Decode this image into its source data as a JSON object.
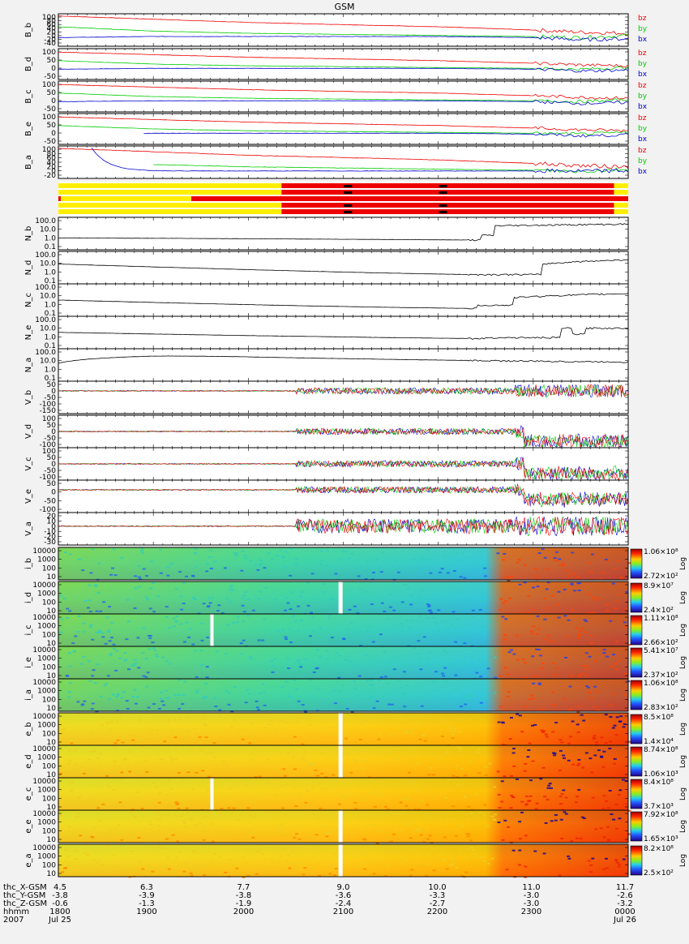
{
  "title": "GSM",
  "colors": {
    "bx": "#0000cc",
    "by": "#00cc00",
    "bz": "#ee0000",
    "black": "#000000",
    "yellow": "#ffee00",
    "red": "#ee0000"
  },
  "panels_b": [
    {
      "label": "B_b",
      "ticks": [
        "100",
        "80",
        "60",
        "40",
        "20",
        "0",
        "-20",
        "-40"
      ],
      "yrange": [
        -40,
        110
      ]
    },
    {
      "label": "B_d",
      "ticks": [
        "100",
        "50",
        "0",
        "-50"
      ],
      "yrange": [
        -60,
        120
      ]
    },
    {
      "label": "B_c",
      "ticks": [
        "100",
        "50",
        "0",
        "-50"
      ],
      "yrange": [
        -60,
        120
      ]
    },
    {
      "label": "B_e",
      "ticks": [
        "100",
        "50",
        "0",
        "-50"
      ],
      "yrange": [
        -60,
        120
      ]
    },
    {
      "label": "B_a",
      "ticks": [
        "100",
        "80",
        "60",
        "40",
        "20",
        "0",
        "-20"
      ],
      "yrange": [
        -30,
        110
      ]
    }
  ],
  "b_legend": [
    "bz",
    "by",
    "bx"
  ],
  "panels_n": [
    {
      "label": "N_b",
      "ticks": [
        "100.0",
        "10.0",
        "1.0",
        "0.1"
      ]
    },
    {
      "label": "N_d",
      "ticks": [
        "100.0",
        "10.0",
        "1.0",
        "0.1"
      ]
    },
    {
      "label": "N_c",
      "ticks": [
        "100.0",
        "10.0",
        "1.0",
        "0.1"
      ]
    },
    {
      "label": "N_e",
      "ticks": [
        "100.0",
        "10.0",
        "1.0",
        "0.1"
      ]
    },
    {
      "label": "N_a",
      "ticks": [
        "100.0",
        "10.0",
        "1.0",
        "0.1"
      ]
    }
  ],
  "panels_v": [
    {
      "label": "V_b",
      "ticks": [
        "50",
        "0",
        "-50",
        "-100",
        "-150"
      ]
    },
    {
      "label": "V_d",
      "ticks": [
        "100",
        "50",
        "0",
        "-50",
        "-100"
      ]
    },
    {
      "label": "V_c",
      "ticks": [
        "100",
        "50",
        "0",
        "-50",
        "-100"
      ]
    },
    {
      "label": "V_e",
      "ticks": [
        "50",
        "0",
        "-50",
        "-100"
      ]
    },
    {
      "label": "V_a",
      "ticks": [
        "20",
        "10",
        "0",
        "-10",
        "-20",
        "-30"
      ]
    }
  ],
  "panels_spec": [
    {
      "label": "i_b",
      "ticks": [
        "10000",
        "1000",
        "100",
        "10"
      ],
      "cmax": "1.06×10⁸",
      "cmin": "2.72×10²"
    },
    {
      "label": "i_d",
      "ticks": [
        "10000",
        "1000",
        "100",
        "10"
      ],
      "cmax": "8.9×10⁷",
      "cmin": "2.4×10²"
    },
    {
      "label": "i_c",
      "ticks": [
        "10000",
        "1000",
        "100",
        "10"
      ],
      "cmax": "1.11×10⁸",
      "cmin": "2.66×10²"
    },
    {
      "label": "i_e",
      "ticks": [
        "10000",
        "1000",
        "100",
        "10"
      ],
      "cmax": "5.41×10⁷",
      "cmin": "2.37×10²"
    },
    {
      "label": "i_a",
      "ticks": [
        "10000",
        "1000",
        "100",
        "10"
      ],
      "cmax": "1.06×10⁸",
      "cmin": "2.83×10²"
    },
    {
      "label": "e_b",
      "ticks": [
        "10000",
        "1000",
        "100",
        "10"
      ],
      "cmax": "8.5×10⁸",
      "cmin": "1.4×10⁴"
    },
    {
      "label": "e_d",
      "ticks": [
        "10000",
        "1000",
        "100",
        "10"
      ],
      "cmax": "8.74×10⁸",
      "cmin": "1.06×10³"
    },
    {
      "label": "e_c",
      "ticks": [
        "10000",
        "1000",
        "100",
        "10"
      ],
      "cmax": "8.4×10⁸",
      "cmin": "3.7×10³"
    },
    {
      "label": "e_e",
      "ticks": [
        "10000",
        "1000",
        "100",
        "10"
      ],
      "cmax": "7.92×10⁸",
      "cmin": "1.65×10³"
    },
    {
      "label": "e_a",
      "ticks": [
        "10000",
        "1000",
        "100",
        "10"
      ],
      "cmax": "8.2×10⁸",
      "cmin": "2.5×10²"
    }
  ],
  "log_label": "Log",
  "chart_data": {
    "type": "line",
    "title": "GSM",
    "x_ticks_hhmm": [
      "1800",
      "1900",
      "2000",
      "2100",
      "2200",
      "2300",
      "0000"
    ],
    "x_range_hours": [
      18,
      24
    ],
    "b_series": [
      {
        "name": "bz",
        "x": [
          18,
          19,
          20,
          21,
          22,
          23,
          23.5,
          24
        ],
        "values": [
          100,
          85,
          70,
          60,
          50,
          35,
          25,
          20
        ]
      },
      {
        "name": "by",
        "x": [
          18,
          19,
          20,
          21,
          22,
          23,
          23.5,
          24
        ],
        "values": [
          50,
          30,
          20,
          15,
          10,
          5,
          0,
          10
        ]
      },
      {
        "name": "bx",
        "x": [
          18,
          19,
          20,
          21,
          22,
          23,
          23.5,
          24
        ],
        "values": [
          0,
          5,
          5,
          5,
          5,
          0,
          -10,
          -5
        ]
      }
    ],
    "n_b_series": {
      "x": [
        18,
        19,
        20,
        21,
        22,
        22.45,
        22.6,
        23,
        24
      ],
      "values": [
        1.0,
        0.8,
        0.6,
        0.5,
        0.6,
        1.0,
        20,
        30,
        40
      ]
    },
    "v_noise_start_hour": 20.5
  },
  "footer": {
    "rows": [
      {
        "label": "thc_X-GSM",
        "values": [
          "4.5",
          "6.3",
          "7.7",
          "9.0",
          "10.0",
          "11.0",
          "11.7"
        ]
      },
      {
        "label": "thc_Y-GSM",
        "values": [
          "-3.8",
          "-3.9",
          "-3.8",
          "-3.6",
          "-3.3",
          "-3.0",
          "-2.6"
        ]
      },
      {
        "label": "thc_Z-GSM",
        "values": [
          "-0.6",
          "-1.3",
          "-1.9",
          "-2.4",
          "-2.7",
          "-3.0",
          "-3.2"
        ]
      },
      {
        "label": "hhmm",
        "values": [
          "1800",
          "1900",
          "2000",
          "2100",
          "2200",
          "2300",
          "0000"
        ]
      },
      {
        "label": "2007",
        "values": [
          "Jul 25",
          "",
          "",
          "",
          "",
          "",
          "Jul 26"
        ]
      }
    ]
  }
}
